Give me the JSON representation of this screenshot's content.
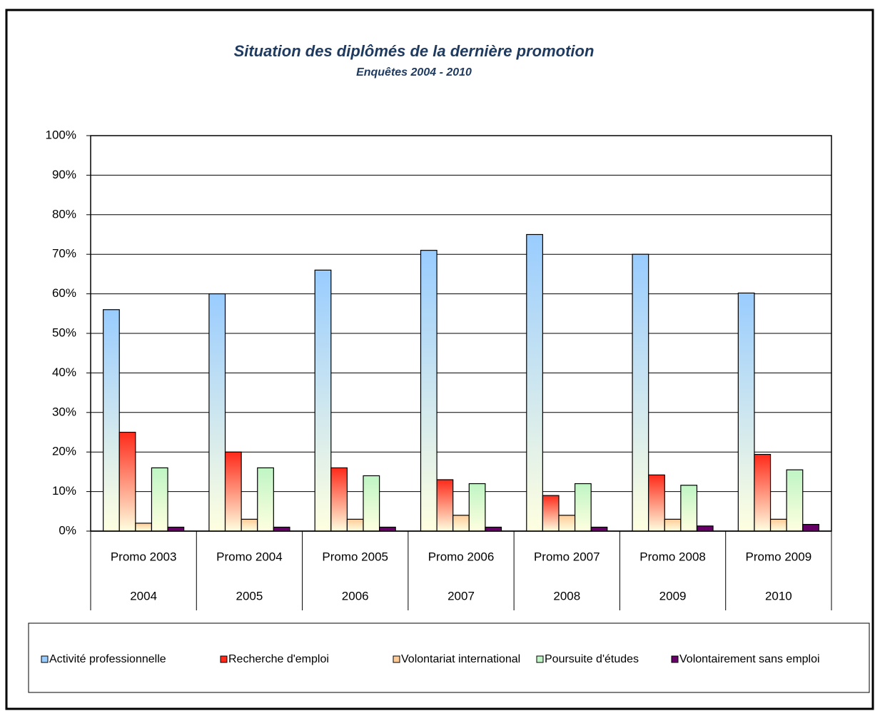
{
  "chart_data": {
    "type": "bar",
    "title": "Situation des diplômés de la dernière promotion",
    "subtitle": "Enquêtes 2004 - 2010",
    "categories": [
      [
        "Promo 2003",
        "2004"
      ],
      [
        "Promo 2004",
        "2005"
      ],
      [
        "Promo 2005",
        "2006"
      ],
      [
        "Promo 2006",
        "2007"
      ],
      [
        "Promo 2007",
        "2008"
      ],
      [
        "Promo 2008",
        "2009"
      ],
      [
        "Promo 2009",
        "2010"
      ]
    ],
    "series": [
      {
        "name": "Activité professionnelle",
        "color": "#99ccff",
        "values": [
          56,
          60,
          66,
          71,
          75,
          70,
          60.2
        ]
      },
      {
        "name": "Recherche d'emploi",
        "color": "#ff2a1a",
        "values": [
          25,
          20,
          16,
          13,
          9,
          14.2,
          19.4
        ]
      },
      {
        "name": "Volontariat international",
        "color": "#ffcc99",
        "values": [
          2,
          3,
          3,
          4,
          4,
          3,
          3
        ]
      },
      {
        "name": "Poursuite d'études",
        "color": "#bff5c4",
        "values": [
          16,
          16,
          14,
          12,
          12,
          11.6,
          15.5
        ]
      },
      {
        "name": "Volontairement sans emploi",
        "color": "#660066",
        "values": [
          1,
          1,
          1,
          1,
          1,
          1.3,
          1.7
        ]
      }
    ],
    "gradient_end": "#ffffe0",
    "ylim": [
      0,
      100
    ],
    "yticks": [
      {
        "value": 0,
        "label": "0%"
      },
      {
        "value": 10,
        "label": "10%"
      },
      {
        "value": 20,
        "label": "20%"
      },
      {
        "value": 30,
        "label": "30%"
      },
      {
        "value": 40,
        "label": "40%"
      },
      {
        "value": 50,
        "label": "50%"
      },
      {
        "value": 60,
        "label": "60%"
      },
      {
        "value": 70,
        "label": "70%"
      },
      {
        "value": 80,
        "label": "80%"
      },
      {
        "value": 90,
        "label": "90%"
      },
      {
        "value": 100,
        "label": "100%"
      }
    ],
    "grid": true,
    "legend": "bottom"
  }
}
